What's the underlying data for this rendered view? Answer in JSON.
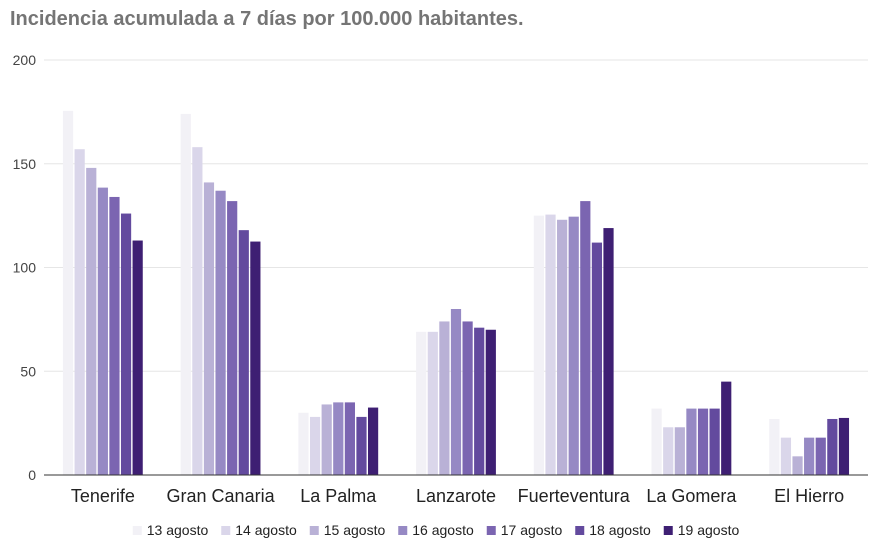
{
  "chart_data": {
    "type": "bar",
    "title": "Incidencia acumulada a 7 días por 100.000 habitantes.",
    "xlabel": "",
    "ylabel": "",
    "ylim": [
      0,
      200
    ],
    "yticks": [
      0,
      50,
      100,
      150,
      200
    ],
    "grid": true,
    "legend_position": "bottom",
    "categories": [
      "Tenerife",
      "Gran Canaria",
      "La Palma",
      "Lanzarote",
      "Fuerteventura",
      "La Gomera",
      "El Hierro"
    ],
    "series": [
      {
        "name": "13 agosto",
        "color": "#f2f1f6",
        "values": [
          175.5,
          174,
          30,
          69,
          125,
          32,
          27
        ]
      },
      {
        "name": "14 agosto",
        "color": "#dad6ea",
        "values": [
          157,
          158,
          28,
          69,
          125.5,
          23,
          18
        ]
      },
      {
        "name": "15 agosto",
        "color": "#b9b1d6",
        "values": [
          148,
          141,
          34,
          74,
          123,
          23,
          9
        ]
      },
      {
        "name": "16 agosto",
        "color": "#9689c4",
        "values": [
          138.5,
          137,
          35,
          80,
          124.5,
          32,
          18
        ]
      },
      {
        "name": "17 agosto",
        "color": "#7b65b1",
        "values": [
          134,
          132,
          35,
          74,
          132,
          32,
          18
        ]
      },
      {
        "name": "18 agosto",
        "color": "#634a9e",
        "values": [
          126,
          118,
          28,
          71,
          112,
          32,
          27
        ]
      },
      {
        "name": "19 agosto",
        "color": "#3e1f73",
        "values": [
          113,
          112.5,
          32.5,
          70,
          119,
          45,
          27.5
        ]
      }
    ]
  }
}
